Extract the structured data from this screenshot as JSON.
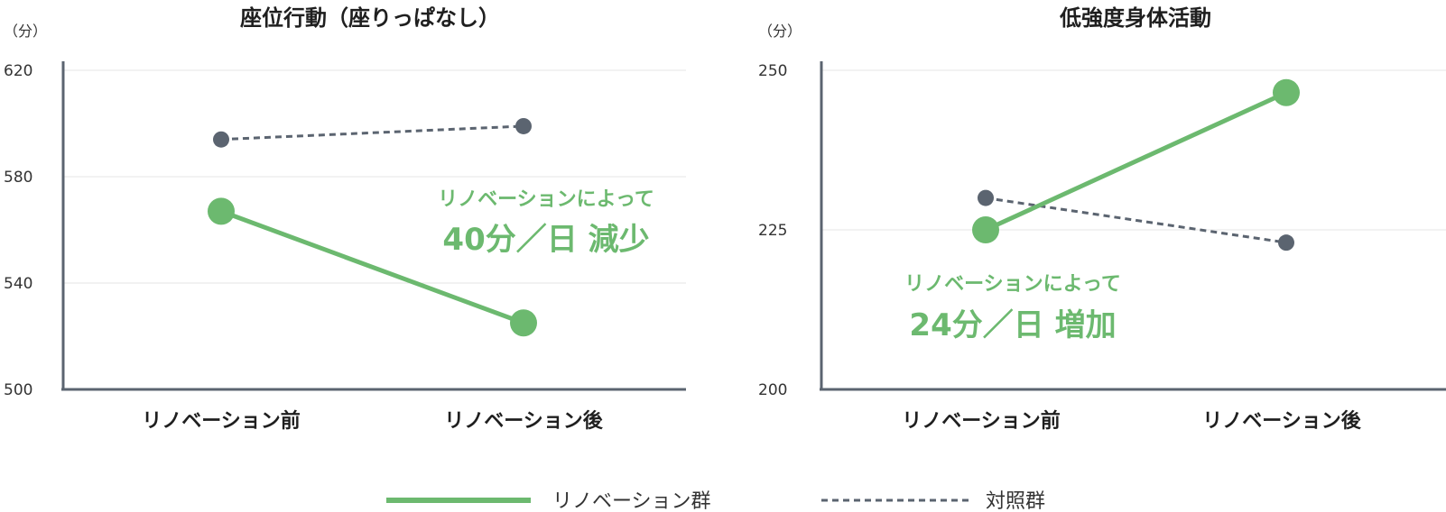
{
  "colors": {
    "renovation": "#6cb96f",
    "control": "#5b6470",
    "axis": "#5b6470",
    "grid": "#e6e6e6"
  },
  "legend": [
    {
      "label": "リノベーション群",
      "style": "solid"
    },
    {
      "label": "対照群",
      "style": "dashed"
    }
  ],
  "chart_data": [
    {
      "type": "line",
      "title": "座位行動（座りっぱなし）",
      "ylabel": "（分）",
      "yticks": [
        "620",
        "580",
        "540",
        "500"
      ],
      "ylim": [
        500,
        620
      ],
      "categories": [
        "リノベーション前",
        "リノベーション後"
      ],
      "series": [
        {
          "name": "リノベーション群",
          "values": [
            567,
            525
          ]
        },
        {
          "name": "対照群",
          "values": [
            594,
            599
          ]
        }
      ],
      "annotation": {
        "line1": "リノベーションによって",
        "line2": "40分／日 減少"
      }
    },
    {
      "type": "line",
      "title": "低強度身体活動",
      "ylabel": "（分）",
      "yticks": [
        "250",
        "225",
        "200"
      ],
      "ylim": [
        200,
        250
      ],
      "categories": [
        "リノベーション前",
        "リノベーション後"
      ],
      "series": [
        {
          "name": "リノベーション群",
          "values": [
            225,
            246.5
          ]
        },
        {
          "name": "対照群",
          "values": [
            230,
            223
          ]
        }
      ],
      "annotation": {
        "line1": "リノベーションによって",
        "line2": "24分／日 増加"
      }
    }
  ]
}
